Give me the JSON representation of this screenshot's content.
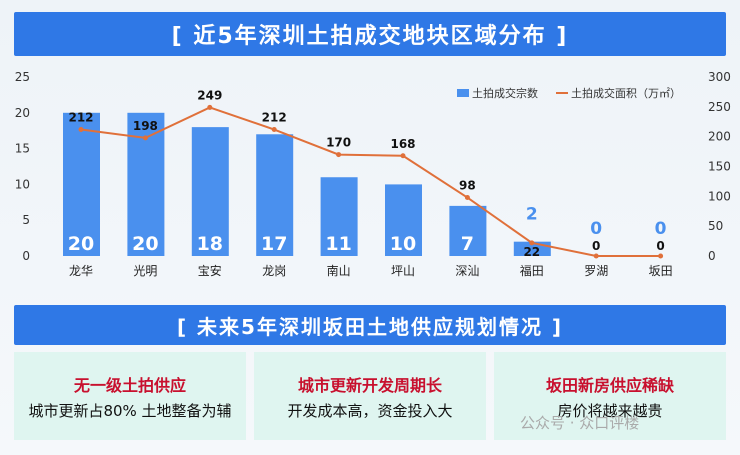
{
  "banner_top": "[ 近5年深圳土拍成交地块区域分布 ]",
  "banner_bottom": "[ 未来5年深圳坂田土地供应规划情况 ]",
  "chart_data": {
    "type": "bar+line",
    "categories": [
      "龙华",
      "光明",
      "宝安",
      "龙岗",
      "南山",
      "坪山",
      "深汕",
      "福田",
      "罗湖",
      "坂田"
    ],
    "series": [
      {
        "name": "土拍成交宗数",
        "type": "bar",
        "axis": "left",
        "color": "#4a90ee",
        "values": [
          20,
          20,
          18,
          17,
          11,
          10,
          7,
          2,
          0,
          0
        ]
      },
      {
        "name": "土拍成交面积（万㎡）",
        "type": "line",
        "axis": "right",
        "color": "#e0703a",
        "values": [
          212,
          198,
          249,
          212,
          170,
          168,
          98,
          22,
          0,
          0
        ]
      }
    ],
    "left_ylim": [
      0,
      25
    ],
    "left_ticks": [
      "0",
      "5",
      "10",
      "15",
      "20",
      "25"
    ],
    "right_ylim": [
      0,
      300
    ],
    "right_ticks": [
      "0",
      "50",
      "100",
      "150",
      "200",
      "250",
      "300"
    ],
    "legend": "top-right",
    "grid": false
  },
  "cards": [
    {
      "title": "无一级土拍供应",
      "desc": "城市更新占80% 土地整备为辅"
    },
    {
      "title": "城市更新开发周期长",
      "desc": "开发成本高，资金投入大"
    },
    {
      "title": "坂田新房供应稀缺",
      "desc": "房价将越来越贵"
    }
  ],
  "watermark": "公众号 · 众口评楼"
}
